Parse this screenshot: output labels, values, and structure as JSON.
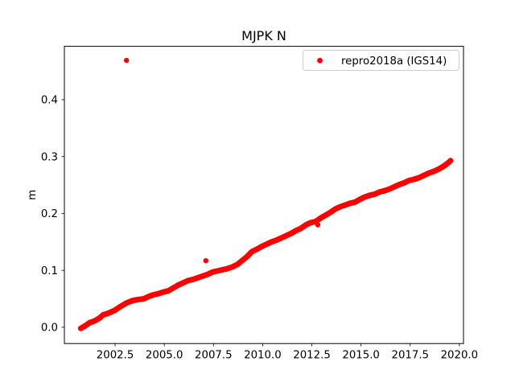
{
  "figure": {
    "background": "#ffffff",
    "frame_color": "#000000"
  },
  "chart_data": {
    "type": "scatter",
    "title": "MJPK N",
    "xlabel": "",
    "ylabel": "m",
    "grid": false,
    "legend_position": "upper right",
    "legend_border_color": "#cccccc",
    "xlim": [
      1999.92,
      2020.21
    ],
    "ylim": [
      -0.0286,
      0.4938
    ],
    "x_ticks": [
      2002.5,
      2005.0,
      2007.5,
      2010.0,
      2012.5,
      2015.0,
      2017.5,
      2020.0
    ],
    "x_tick_labels": [
      "2002.5",
      "2005.0",
      "2007.5",
      "2010.0",
      "2012.5",
      "2015.0",
      "2017.5",
      "2020.0"
    ],
    "y_ticks": [
      0.0,
      0.1,
      0.2,
      0.3,
      0.4
    ],
    "y_tick_labels": [
      "0.0",
      "0.1",
      "0.2",
      "0.3",
      "0.4"
    ],
    "series": [
      {
        "name": "repro2018a (IGS14)",
        "color": "#ff0000",
        "marker": "dot",
        "trend": [
          [
            2000.75,
            -0.002
          ],
          [
            2001.0,
            0.003
          ],
          [
            2001.2,
            0.008
          ],
          [
            2001.45,
            0.011
          ],
          [
            2001.7,
            0.016
          ],
          [
            2001.9,
            0.022
          ],
          [
            2002.1,
            0.024
          ],
          [
            2002.3,
            0.027
          ],
          [
            2002.5,
            0.03
          ],
          [
            2002.7,
            0.035
          ],
          [
            2002.9,
            0.039
          ],
          [
            2003.1,
            0.043
          ],
          [
            2003.4,
            0.047
          ],
          [
            2003.7,
            0.049
          ],
          [
            2003.95,
            0.05
          ],
          [
            2004.2,
            0.054
          ],
          [
            2004.45,
            0.057
          ],
          [
            2004.7,
            0.059
          ],
          [
            2004.95,
            0.062
          ],
          [
            2005.2,
            0.064
          ],
          [
            2005.45,
            0.069
          ],
          [
            2005.7,
            0.074
          ],
          [
            2005.95,
            0.078
          ],
          [
            2006.2,
            0.082
          ],
          [
            2006.45,
            0.084
          ],
          [
            2006.7,
            0.087
          ],
          [
            2006.95,
            0.09
          ],
          [
            2007.2,
            0.093
          ],
          [
            2007.45,
            0.097
          ],
          [
            2007.7,
            0.099
          ],
          [
            2007.95,
            0.101
          ],
          [
            2008.2,
            0.103
          ],
          [
            2008.45,
            0.106
          ],
          [
            2008.7,
            0.11
          ],
          [
            2008.95,
            0.117
          ],
          [
            2009.2,
            0.124
          ],
          [
            2009.45,
            0.133
          ],
          [
            2009.7,
            0.137
          ],
          [
            2009.95,
            0.142
          ],
          [
            2010.2,
            0.146
          ],
          [
            2010.45,
            0.15
          ],
          [
            2010.7,
            0.153
          ],
          [
            2010.95,
            0.157
          ],
          [
            2011.2,
            0.161
          ],
          [
            2011.45,
            0.165
          ],
          [
            2011.7,
            0.17
          ],
          [
            2011.95,
            0.174
          ],
          [
            2012.2,
            0.18
          ],
          [
            2012.45,
            0.184
          ],
          [
            2012.7,
            0.186
          ],
          [
            2012.95,
            0.192
          ],
          [
            2013.2,
            0.197
          ],
          [
            2013.45,
            0.202
          ],
          [
            2013.7,
            0.208
          ],
          [
            2013.95,
            0.212
          ],
          [
            2014.2,
            0.215
          ],
          [
            2014.45,
            0.218
          ],
          [
            2014.7,
            0.22
          ],
          [
            2014.95,
            0.225
          ],
          [
            2015.2,
            0.229
          ],
          [
            2015.45,
            0.232
          ],
          [
            2015.7,
            0.234
          ],
          [
            2015.95,
            0.238
          ],
          [
            2016.2,
            0.24
          ],
          [
            2016.45,
            0.243
          ],
          [
            2016.7,
            0.247
          ],
          [
            2016.95,
            0.251
          ],
          [
            2017.2,
            0.254
          ],
          [
            2017.45,
            0.258
          ],
          [
            2017.7,
            0.26
          ],
          [
            2017.95,
            0.263
          ],
          [
            2018.2,
            0.267
          ],
          [
            2018.45,
            0.271
          ],
          [
            2018.7,
            0.274
          ],
          [
            2018.95,
            0.278
          ],
          [
            2019.2,
            0.283
          ],
          [
            2019.35,
            0.287
          ],
          [
            2019.5,
            0.291
          ],
          [
            2019.55,
            0.293
          ]
        ],
        "outliers": [
          [
            2003.08,
            0.469
          ],
          [
            2007.11,
            0.117
          ],
          [
            2012.8,
            0.18
          ]
        ]
      }
    ]
  }
}
